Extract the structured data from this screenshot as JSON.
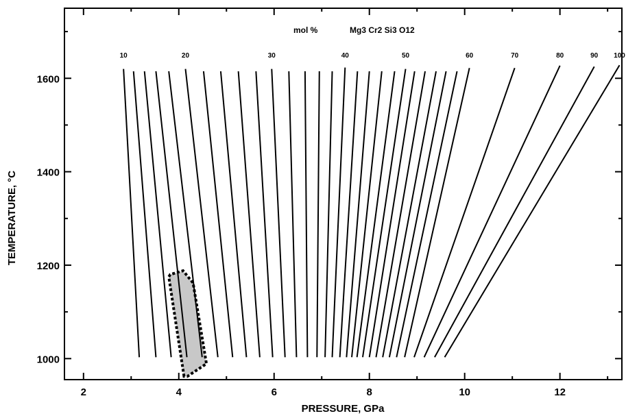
{
  "chart_data": {
    "type": "line",
    "title": "mol %",
    "title_formula": "Mg3 Cr2 Si3 O12",
    "xlabel": "PRESSURE, GPa",
    "ylabel": "TEMPERATURE, °C",
    "xlim": [
      1.6,
      13.3
    ],
    "ylim": [
      955,
      1750
    ],
    "x_ticks": [
      2,
      4,
      6,
      8,
      10,
      12
    ],
    "y_ticks": [
      1000,
      1200,
      1400,
      1600
    ],
    "x_tick_labels": [
      "2",
      "4",
      "6",
      "8",
      "10",
      "12"
    ],
    "y_tick_labels": [
      "1000",
      "1200",
      "1400",
      "1600"
    ],
    "grid": false,
    "series": [
      {
        "x": [
          2.84,
          3.17
        ],
        "y": [
          1620,
          1003
        ],
        "label": "10"
      },
      {
        "x": [
          3.05,
          3.52
        ],
        "y": [
          1615,
          1003
        ]
      },
      {
        "x": [
          3.28,
          3.84
        ],
        "y": [
          1615,
          1003
        ]
      },
      {
        "x": [
          3.52,
          4.17
        ],
        "y": [
          1615,
          1003
        ]
      },
      {
        "x": [
          3.79,
          4.49
        ],
        "y": [
          1615,
          1003
        ]
      },
      {
        "x": [
          4.14,
          4.82
        ],
        "y": [
          1620,
          1003
        ],
        "label": "20"
      },
      {
        "x": [
          4.52,
          5.13
        ],
        "y": [
          1615,
          1003
        ]
      },
      {
        "x": [
          4.88,
          5.42
        ],
        "y": [
          1615,
          1003
        ]
      },
      {
        "x": [
          5.25,
          5.7
        ],
        "y": [
          1615,
          1003
        ]
      },
      {
        "x": [
          5.62,
          5.97
        ],
        "y": [
          1615,
          1003
        ]
      },
      {
        "x": [
          5.95,
          6.23
        ],
        "y": [
          1620,
          1003
        ],
        "label": "30"
      },
      {
        "x": [
          6.31,
          6.47
        ],
        "y": [
          1615,
          1003
        ]
      },
      {
        "x": [
          6.65,
          6.7
        ],
        "y": [
          1615,
          1003
        ]
      },
      {
        "x": [
          6.95,
          6.9
        ],
        "y": [
          1615,
          1003
        ]
      },
      {
        "x": [
          7.22,
          7.07
        ],
        "y": [
          1615,
          1003
        ]
      },
      {
        "x": [
          7.49,
          7.22
        ],
        "y": [
          1623,
          1003
        ],
        "label": "40"
      },
      {
        "x": [
          7.75,
          7.38
        ],
        "y": [
          1615,
          1003
        ]
      },
      {
        "x": [
          8.0,
          7.52
        ],
        "y": [
          1615,
          1003
        ]
      },
      {
        "x": [
          8.26,
          7.63
        ],
        "y": [
          1615,
          1003
        ]
      },
      {
        "x": [
          8.53,
          7.74
        ],
        "y": [
          1615,
          1003
        ]
      },
      {
        "x": [
          8.76,
          7.86
        ],
        "y": [
          1620,
          1003
        ],
        "label": "50"
      },
      {
        "x": [
          8.95,
          8.0
        ],
        "y": [
          1615,
          1003
        ]
      },
      {
        "x": [
          9.17,
          8.14
        ],
        "y": [
          1615,
          1003
        ]
      },
      {
        "x": [
          9.4,
          8.28
        ],
        "y": [
          1615,
          1003
        ]
      },
      {
        "x": [
          9.61,
          8.42
        ],
        "y": [
          1615,
          1003
        ]
      },
      {
        "x": [
          9.84,
          8.57
        ],
        "y": [
          1615,
          1003
        ]
      },
      {
        "x": [
          10.1,
          8.74
        ],
        "y": [
          1622,
          1003
        ],
        "label": "60"
      },
      {
        "x": [
          11.05,
          8.94
        ],
        "y": [
          1622,
          1003
        ],
        "label": "70"
      },
      {
        "x": [
          12.0,
          9.15
        ],
        "y": [
          1627,
          1003
        ],
        "label": "80"
      },
      {
        "x": [
          12.72,
          9.37
        ],
        "y": [
          1625,
          1003
        ],
        "label": "90"
      },
      {
        "x": [
          13.25,
          9.58
        ],
        "y": [
          1628,
          1003
        ],
        "label": "100"
      }
    ],
    "shaded_region": {
      "x": [
        4.11,
        3.79,
        3.82,
        4.09,
        4.3,
        4.58,
        4.18
      ],
      "y": [
        962,
        1175,
        1180,
        1188,
        1162,
        989,
        962
      ],
      "fill": "#c8c8c8",
      "border": "dotted"
    }
  }
}
